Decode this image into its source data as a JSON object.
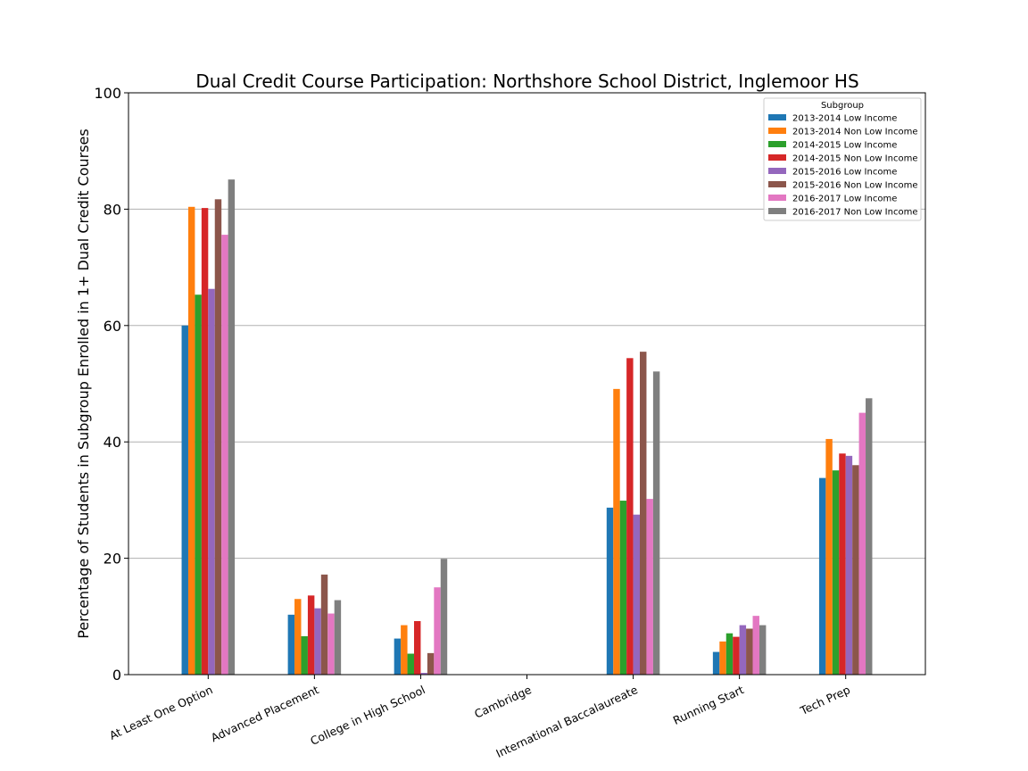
{
  "chart_data": {
    "type": "bar",
    "title": "Dual Credit Course Participation: Northshore School District, Inglemoor HS",
    "xlabel": "",
    "ylabel": "Percentage of Students in Subgroup Enrolled in 1+ Dual Credit Courses",
    "ylim": [
      0,
      100
    ],
    "yticks": [
      0,
      20,
      40,
      60,
      80,
      100
    ],
    "grid": "horizontal",
    "legend_title": "Subgroup",
    "legend_position": "top-right",
    "categories": [
      "At Least One Option",
      "Advanced Placement",
      "College in High School",
      "Cambridge",
      "International Baccalaureate",
      "Running Start",
      "Tech Prep"
    ],
    "series": [
      {
        "name": "2013-2014 Low Income",
        "color": "#1f77b4",
        "values": [
          60.0,
          10.3,
          6.2,
          0,
          28.7,
          3.9,
          33.8
        ]
      },
      {
        "name": "2013-2014 Non Low Income",
        "color": "#ff7f0e",
        "values": [
          80.4,
          13.0,
          8.5,
          0,
          49.1,
          5.7,
          40.5
        ]
      },
      {
        "name": "2014-2015 Low Income",
        "color": "#2ca02c",
        "values": [
          65.3,
          6.6,
          3.6,
          0,
          29.9,
          7.1,
          35.1
        ]
      },
      {
        "name": "2014-2015 Non Low Income",
        "color": "#d62728",
        "values": [
          80.2,
          13.6,
          9.2,
          0,
          54.4,
          6.5,
          38.0
        ]
      },
      {
        "name": "2015-2016 Low Income",
        "color": "#9467bd",
        "values": [
          66.3,
          11.4,
          0.3,
          0,
          27.5,
          8.5,
          37.6
        ]
      },
      {
        "name": "2015-2016 Non Low Income",
        "color": "#8c564b",
        "values": [
          81.7,
          17.2,
          3.7,
          0,
          55.5,
          7.9,
          36.0
        ]
      },
      {
        "name": "2016-2017 Low Income",
        "color": "#e377c2",
        "values": [
          75.6,
          10.5,
          15.0,
          0,
          30.2,
          10.1,
          45.0
        ]
      },
      {
        "name": "2016-2017 Non Low Income",
        "color": "#7f7f7f",
        "values": [
          85.1,
          12.8,
          19.9,
          0,
          52.1,
          8.5,
          47.5
        ]
      }
    ]
  }
}
